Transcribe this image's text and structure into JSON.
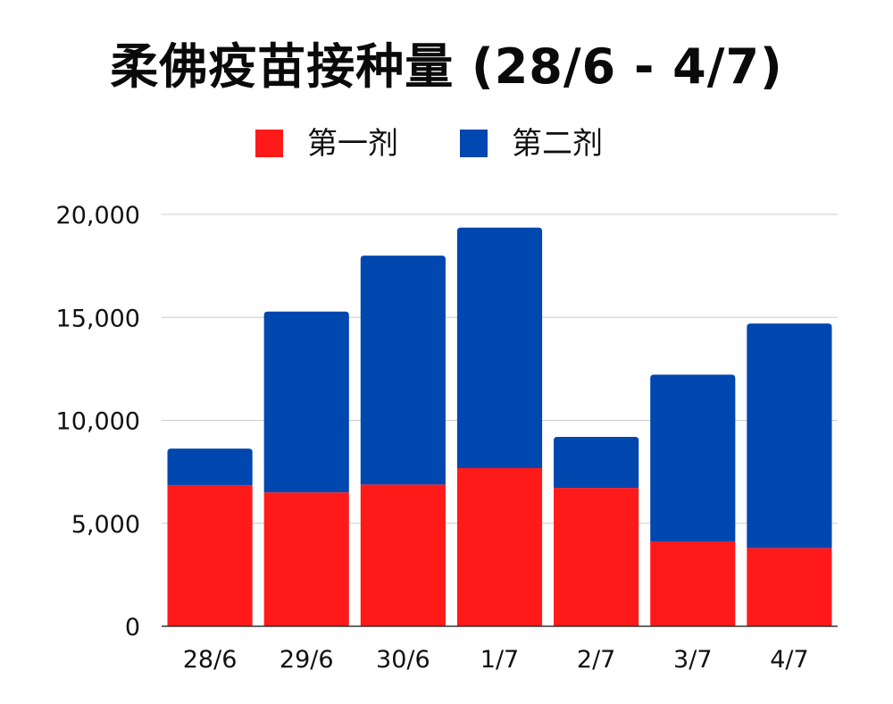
{
  "chart_data": {
    "type": "bar",
    "stacked": true,
    "title": "柔佛疫苗接种量 (28/6 - 4/7)",
    "categories": [
      "28/6",
      "29/6",
      "30/6",
      "1/7",
      "2/7",
      "3/7",
      "4/7"
    ],
    "series": [
      {
        "name": "第一剂",
        "color": "#ff1a1a",
        "values": [
          6850,
          6500,
          6880,
          7680,
          6720,
          4120,
          3800
        ]
      },
      {
        "name": "第二剂",
        "color": "#0047b0",
        "values": [
          1780,
          8780,
          11120,
          11680,
          2480,
          8100,
          10900
        ]
      }
    ],
    "ylim": [
      0,
      20000
    ],
    "yticks": [
      0,
      5000,
      10000,
      15000,
      20000
    ],
    "ytick_labels": [
      "0",
      "5,000",
      "10,000",
      "15,000",
      "20,000"
    ],
    "grid": true,
    "legend_position": "top-center"
  }
}
